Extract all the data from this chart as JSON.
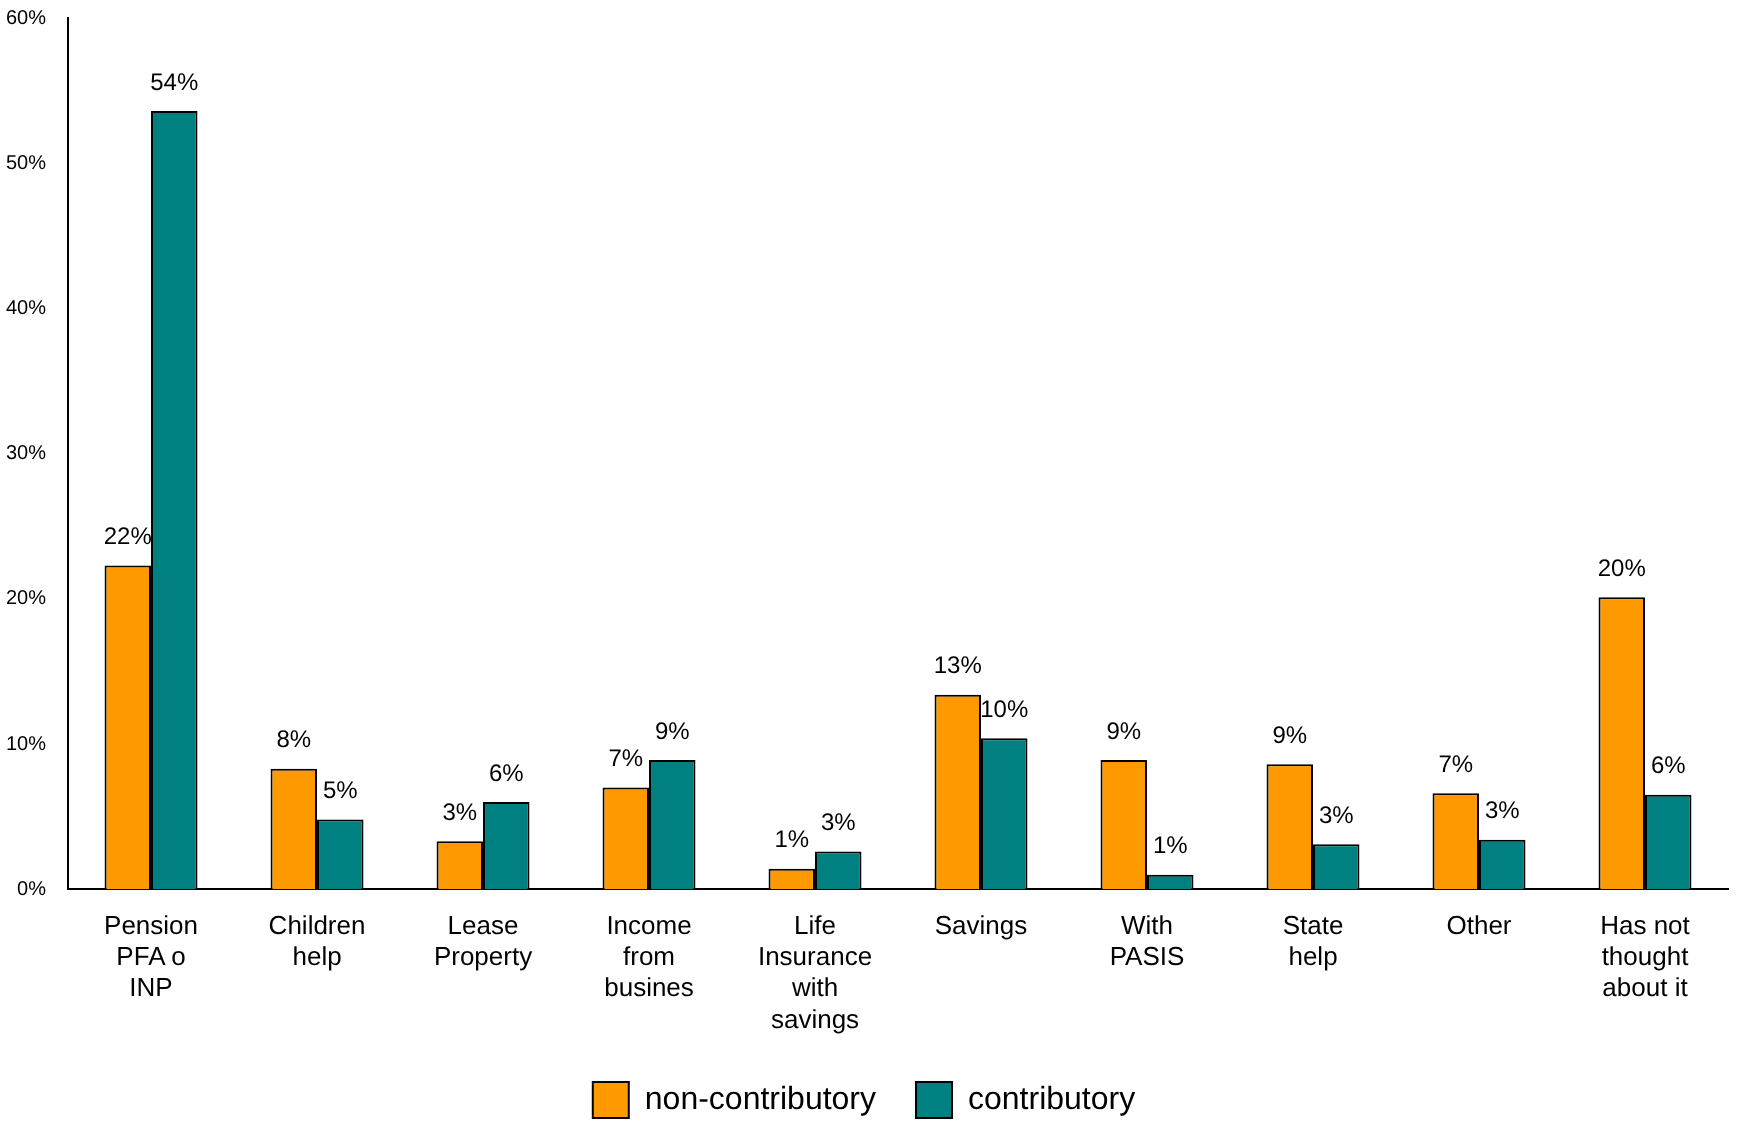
{
  "chart_data": {
    "type": "bar",
    "categories": [
      "Pension PFA o INP",
      "Children help",
      "Lease Property",
      "Income from busines",
      "Life Insurance with savings",
      "Savings",
      "With PASIS",
      "State help",
      "Other",
      "Has not thought about it"
    ],
    "series": [
      {
        "name": "non-contributory",
        "color": "#ff9900",
        "values": [
          22.3,
          8.3,
          3.3,
          7.0,
          1.4,
          13.4,
          8.9,
          8.6,
          6.6,
          20.1
        ],
        "value_labels": [
          "22%",
          "8%",
          "3%",
          "7%",
          "1%",
          "13%",
          "9%",
          "9%",
          "7%",
          "20%"
        ]
      },
      {
        "name": "contributory",
        "color": "#008080",
        "values": [
          53.6,
          4.8,
          6.0,
          8.9,
          2.6,
          10.4,
          1.0,
          3.1,
          3.4,
          6.5
        ],
        "value_labels": [
          "54%",
          "5%",
          "6%",
          "9%",
          "3%",
          "10%",
          "1%",
          "3%",
          "3%",
          "6%"
        ]
      }
    ],
    "ylim": [
      0,
      60
    ],
    "yticks": [
      {
        "value": 0,
        "label": "0%"
      },
      {
        "value": 10,
        "label": "10%"
      },
      {
        "value": 20,
        "label": "20%"
      },
      {
        "value": 30,
        "label": "30%"
      },
      {
        "value": 40,
        "label": "40%"
      },
      {
        "value": 50,
        "label": "50%"
      },
      {
        "value": 60,
        "label": "60%"
      }
    ],
    "grid": false,
    "legend": "bottom"
  }
}
